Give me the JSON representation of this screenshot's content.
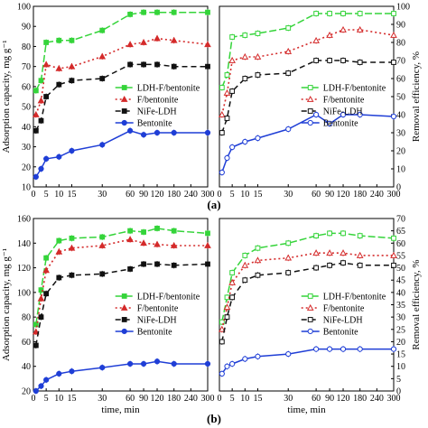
{
  "panel_labels": [
    "(a)",
    "(b)"
  ],
  "colors": {
    "green": "#35d43a",
    "red": "#d42a2a",
    "black": "#111111",
    "blue": "#1f3ed6"
  },
  "chart_data": [
    {
      "type": "line",
      "id": "a-left",
      "ylabel": "Adsorption capacity, mg g⁻¹",
      "xlabel": "",
      "xlim": [
        0,
        300
      ],
      "ylim": [
        10,
        100
      ],
      "x_ticks": [
        0,
        5,
        10,
        15,
        30,
        60,
        90,
        120,
        180,
        240,
        300
      ],
      "y_ticks": [
        10,
        20,
        30,
        40,
        50,
        60,
        70,
        80,
        90,
        100
      ],
      "legend": "inside-right",
      "x": [
        1,
        3,
        5,
        10,
        15,
        30,
        60,
        90,
        120,
        180,
        300
      ],
      "series": [
        {
          "name": "LDH-F/bentonite",
          "color": "green",
          "dash": "8,3",
          "marker": "square-filled",
          "values": [
            58,
            63,
            82,
            83,
            83,
            88,
            96,
            97,
            97,
            97,
            97
          ]
        },
        {
          "name": "F/bentonite",
          "color": "red",
          "dash": "2,3",
          "marker": "triangle-filled",
          "values": [
            46,
            53,
            71,
            69,
            70,
            75,
            81,
            82,
            84,
            83,
            81
          ]
        },
        {
          "name": "NiFe-LDH",
          "color": "black",
          "dash": "6,4",
          "marker": "square-filled",
          "values": [
            38,
            43,
            55,
            61,
            63,
            64,
            71,
            71,
            71,
            70,
            70
          ]
        },
        {
          "name": "Bentonite",
          "color": "blue",
          "dash": "",
          "marker": "circle-filled",
          "values": [
            15,
            19,
            24,
            25,
            28,
            31,
            38,
            36,
            37,
            37,
            37
          ]
        }
      ]
    },
    {
      "type": "line",
      "id": "a-right",
      "ylabel": "Removal efficiency, %",
      "xlabel": "",
      "xlim": [
        0,
        300
      ],
      "ylim": [
        0,
        100
      ],
      "x_ticks": [
        0,
        5,
        10,
        15,
        30,
        60,
        90,
        120,
        180,
        240,
        300
      ],
      "y_ticks": [
        0,
        10,
        20,
        30,
        40,
        50,
        60,
        70,
        80,
        90,
        100
      ],
      "legend": "inside-right",
      "x": [
        1,
        3,
        5,
        10,
        15,
        30,
        60,
        90,
        120,
        180,
        300
      ],
      "series": [
        {
          "name": "LDH-F/bentonite",
          "color": "green",
          "dash": "8,3",
          "marker": "square-open",
          "values": [
            55,
            62,
            83,
            84,
            85,
            88,
            96,
            96,
            96,
            96,
            96
          ]
        },
        {
          "name": "F/bentonite",
          "color": "red",
          "dash": "2,3",
          "marker": "triangle-open",
          "values": [
            40,
            52,
            70,
            72,
            72,
            75,
            81,
            84,
            87,
            87,
            84
          ]
        },
        {
          "name": "NiFe-LDH",
          "color": "black",
          "dash": "6,4",
          "marker": "square-open",
          "values": [
            30,
            38,
            53,
            60,
            62,
            63,
            70,
            70,
            70,
            69,
            69
          ]
        },
        {
          "name": "Bentonite",
          "color": "blue",
          "dash": "",
          "marker": "circle-open",
          "values": [
            8,
            16,
            22,
            25,
            27,
            32,
            40,
            35,
            40,
            40,
            39
          ]
        }
      ]
    },
    {
      "type": "line",
      "id": "b-left",
      "ylabel": "Adsorption capacity, mg g⁻¹",
      "xlabel": "time, min",
      "xlim": [
        0,
        300
      ],
      "ylim": [
        20,
        160
      ],
      "x_ticks": [
        0,
        5,
        10,
        15,
        30,
        60,
        90,
        120,
        180,
        240,
        300
      ],
      "y_ticks": [
        20,
        40,
        60,
        80,
        100,
        120,
        140,
        160
      ],
      "legend": "inside-right",
      "x": [
        1,
        3,
        5,
        10,
        15,
        30,
        60,
        90,
        120,
        180,
        300
      ],
      "series": [
        {
          "name": "LDH-F/bentonite",
          "color": "green",
          "dash": "8,3",
          "marker": "square-filled",
          "values": [
            74,
            102,
            128,
            142,
            144,
            145,
            150,
            149,
            152,
            150,
            148
          ]
        },
        {
          "name": "F/bentonite",
          "color": "red",
          "dash": "2,3",
          "marker": "triangle-filled",
          "values": [
            68,
            95,
            118,
            133,
            136,
            138,
            143,
            140,
            139,
            138,
            138
          ]
        },
        {
          "name": "NiFe-LDH",
          "color": "black",
          "dash": "6,4",
          "marker": "square-filled",
          "values": [
            57,
            80,
            99,
            112,
            114,
            115,
            119,
            123,
            123,
            122,
            123
          ]
        },
        {
          "name": "Bentonite",
          "color": "blue",
          "dash": "",
          "marker": "circle-filled",
          "values": [
            20,
            24,
            29,
            34,
            36,
            39,
            42,
            42,
            44,
            42,
            42
          ]
        }
      ]
    },
    {
      "type": "line",
      "id": "b-right",
      "ylabel": "Removal efficiency, %",
      "xlabel": "time, min",
      "xlim": [
        0,
        300
      ],
      "ylim": [
        0,
        70
      ],
      "x_ticks": [
        0,
        5,
        10,
        15,
        30,
        60,
        90,
        120,
        180,
        240,
        300
      ],
      "y_ticks": [
        0,
        5,
        10,
        15,
        20,
        25,
        30,
        35,
        40,
        45,
        50,
        55,
        60,
        65,
        70
      ],
      "legend": "inside-right",
      "x": [
        1,
        3,
        5,
        10,
        15,
        30,
        60,
        90,
        120,
        180,
        300
      ],
      "series": [
        {
          "name": "LDH-F/bentonite",
          "color": "green",
          "dash": "8,3",
          "marker": "square-open",
          "values": [
            28,
            38,
            48,
            55,
            58,
            60,
            63,
            64,
            64,
            63,
            62
          ]
        },
        {
          "name": "F/bentonite",
          "color": "red",
          "dash": "2,3",
          "marker": "triangle-open",
          "values": [
            25,
            34,
            44,
            51,
            53,
            54,
            56,
            56,
            56,
            55,
            55
          ]
        },
        {
          "name": "NiFe-LDH",
          "color": "black",
          "dash": "6,4",
          "marker": "square-open",
          "values": [
            20,
            30,
            38,
            45,
            47,
            48,
            50,
            51,
            52,
            51,
            51
          ]
        },
        {
          "name": "Bentonite",
          "color": "blue",
          "dash": "",
          "marker": "circle-open",
          "values": [
            7,
            10,
            11,
            13,
            14,
            15,
            17,
            17,
            17,
            17,
            17
          ]
        }
      ]
    }
  ]
}
